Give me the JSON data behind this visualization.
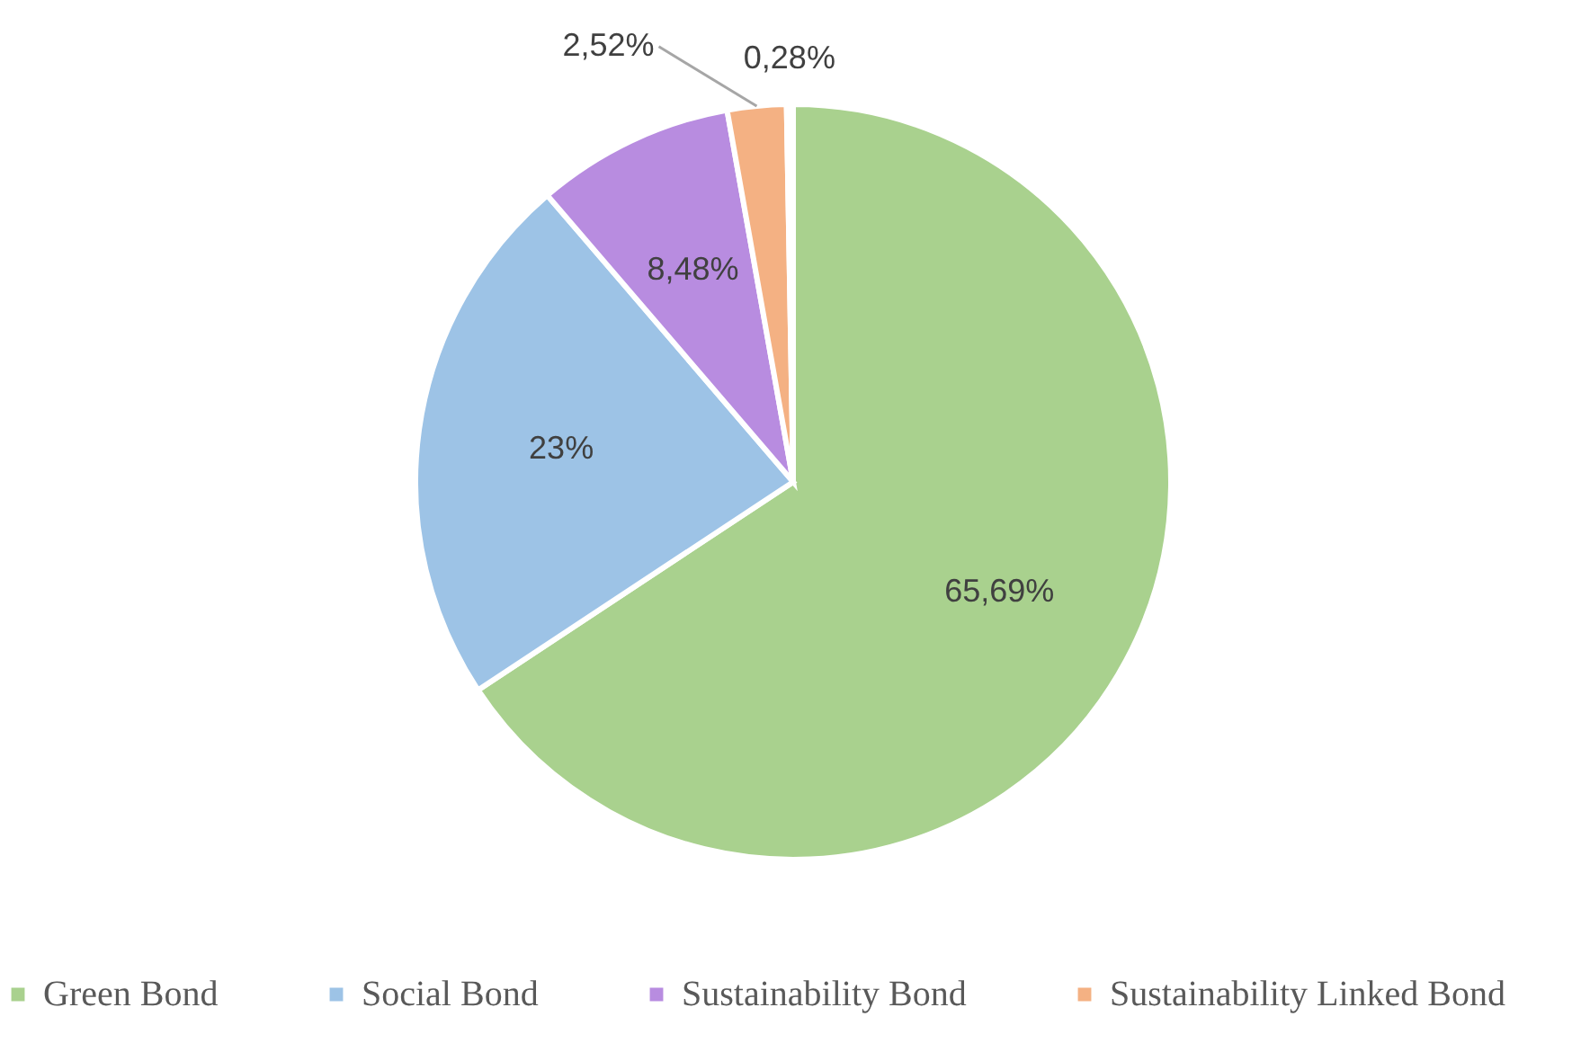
{
  "chart_data": {
    "type": "pie",
    "categories": [
      "Green Bond",
      "Social Bond",
      "Sustainability Bond",
      "Sustainability Linked Bond",
      null
    ],
    "values": [
      65.69,
      23,
      8.48,
      2.52,
      0.28
    ],
    "colors": [
      "#a9d18e",
      "#9dc3e6",
      "#b88ce0",
      "#f4b183",
      "#ffffff"
    ],
    "value_labels": [
      "65,69%",
      "23%",
      "8,48%",
      "2,52%",
      "0,28%"
    ],
    "legend": "bottom"
  }
}
